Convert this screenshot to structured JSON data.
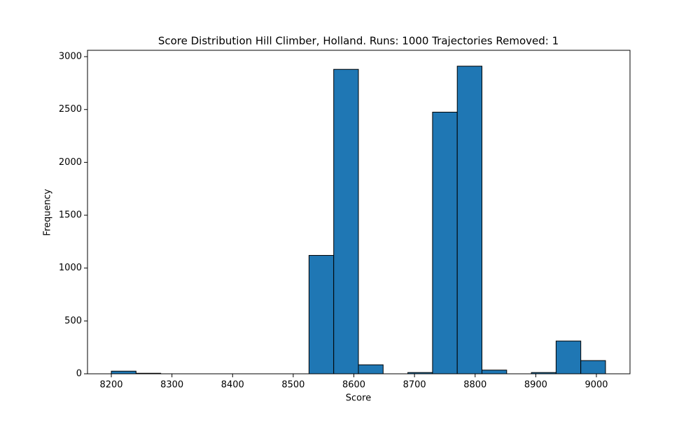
{
  "chart_data": {
    "type": "histogram",
    "title": "Score Distribution Hill Climber, Holland. Runs: 1000 Trajectories Removed: 1",
    "x_label": "Score",
    "y_label": "Frequency",
    "bins": [
      8200,
      8240.75,
      8281.5,
      8322.25,
      8363,
      8403.75,
      8444.5,
      8485.25,
      8526,
      8566.75,
      8607.5,
      8648.25,
      8689,
      8729.75,
      8770.5,
      8811.25,
      8852,
      8892.75,
      8933.5,
      8974.25,
      9015
    ],
    "counts": [
      25,
      5,
      0,
      0,
      0,
      0,
      0,
      0,
      1120,
      2880,
      85,
      0,
      12,
      2475,
      2910,
      35,
      0,
      12,
      310,
      125
    ],
    "color": "#1f77b4",
    "edgecolor": "#000000",
    "xlim": [
      8160.7,
      9055.4
    ],
    "xticks": [
      8200,
      8300,
      8400,
      8500,
      8600,
      8700,
      8800,
      8900,
      9000
    ],
    "ylim": [
      0,
      3060
    ],
    "yticks": [
      0,
      500,
      1000,
      1500,
      2000,
      2500,
      3000
    ]
  }
}
